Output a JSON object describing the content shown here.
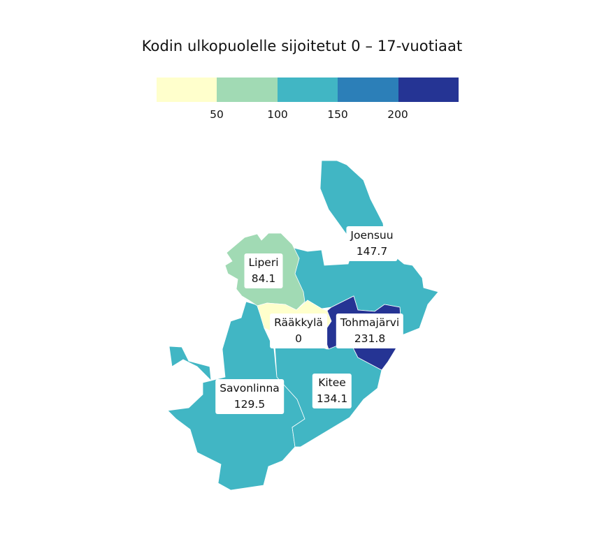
{
  "title": "Kodin ulkopuolelle sijoitetut 0 – 17-vuotiaat",
  "legend": {
    "colors": [
      "#ffffcc",
      "#a1dab4",
      "#41b6c4",
      "#2c7fb8",
      "#253494"
    ],
    "breaks": [
      "50",
      "100",
      "150",
      "200"
    ]
  },
  "map_data": {
    "type": "choropleth",
    "regions": [
      {
        "name": "Joensuu",
        "value": "147.7",
        "color": "#41b6c4"
      },
      {
        "name": "Liperi",
        "value": "84.1",
        "color": "#a1dab4"
      },
      {
        "name": "Rääkkylä",
        "value": "0",
        "color": "#ffffcc"
      },
      {
        "name": "Tohmajärvi",
        "value": "231.8",
        "color": "#253494"
      },
      {
        "name": "Kitee",
        "value": "134.1",
        "color": "#41b6c4"
      },
      {
        "name": "Savonlinna",
        "value": "129.5",
        "color": "#41b6c4"
      }
    ]
  }
}
